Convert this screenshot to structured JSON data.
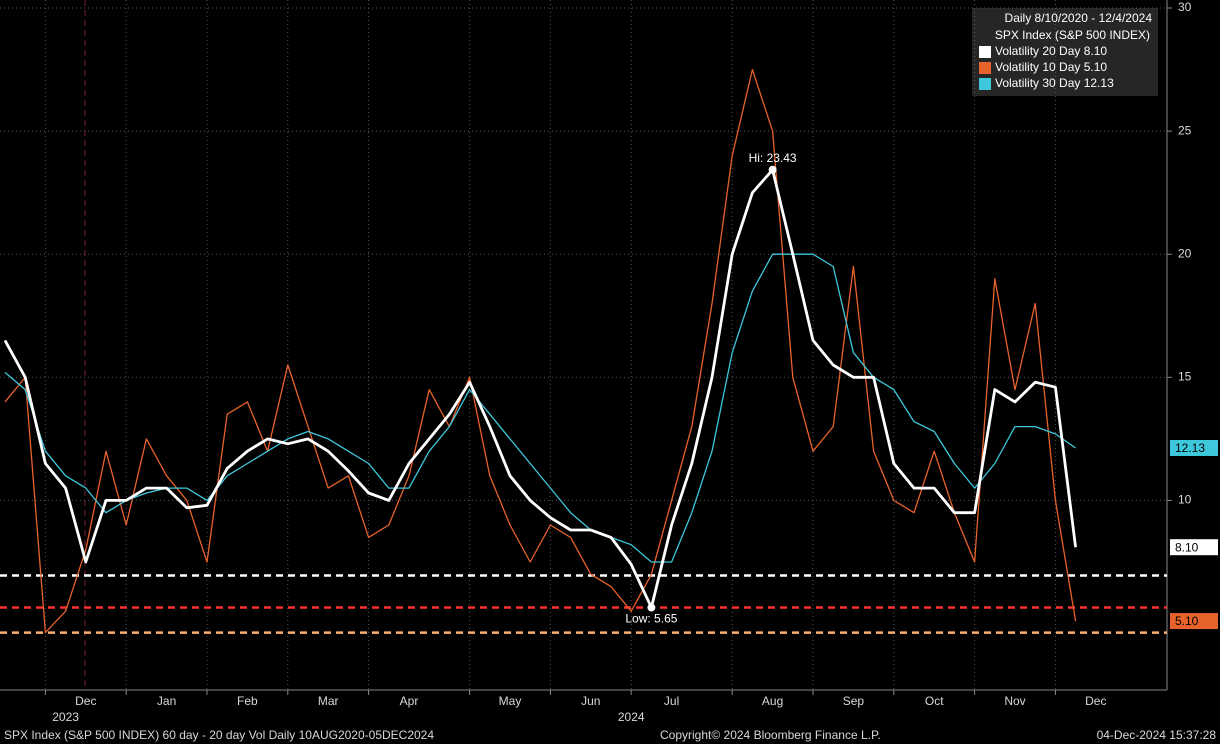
{
  "chart_data": {
    "type": "line",
    "legend_title": "Daily 8/10/2020 - 12/4/2024",
    "legend_subtitle": "SPX Index (S&P 500 INDEX)",
    "footer_left": "SPX Index (S&P 500 INDEX) 60 day - 20 day Vol  Daily 10AUG2020-05DEC2024",
    "footer_center": "Copyright© 2024 Bloomberg Finance L.P.",
    "footer_right": "04-Dec-2024 15:37:28",
    "categories": [
      null,
      null,
      null,
      null,
      "Dec",
      null,
      null,
      null,
      "Jan",
      null,
      null,
      null,
      "Feb",
      null,
      null,
      null,
      "Mar",
      null,
      null,
      null,
      "Apr",
      null,
      null,
      null,
      null,
      "May",
      null,
      null,
      null,
      "Jun",
      null,
      null,
      null,
      "Jul",
      null,
      null,
      null,
      null,
      "Aug",
      null,
      null,
      null,
      "Sep",
      null,
      null,
      null,
      "Oct",
      null,
      null,
      null,
      "Nov",
      null,
      null,
      null,
      "Dec",
      null,
      null,
      null
    ],
    "year_labels": [
      null,
      null,
      null,
      "2023",
      null,
      null,
      null,
      null,
      null,
      null,
      null,
      null,
      null,
      null,
      null,
      null,
      null,
      null,
      null,
      null,
      null,
      null,
      null,
      null,
      null,
      null,
      null,
      null,
      null,
      null,
      null,
      "2024",
      null,
      null,
      null,
      null,
      null,
      null,
      null,
      null,
      null,
      null,
      null,
      null,
      null,
      null,
      null,
      null,
      null,
      null,
      null,
      null,
      null,
      null,
      null,
      null,
      null,
      null
    ],
    "series": [
      {
        "name": "Volatility 20 Day 8.10",
        "color": "#ffffff",
        "end_label": "8.10",
        "end_value": 8.1,
        "values": [
          16.5,
          15,
          11.5,
          10.5,
          7.5,
          10,
          10,
          10.5,
          10.5,
          9.7,
          9.8,
          11.3,
          12,
          12.5,
          12.3,
          12.5,
          12,
          11.2,
          10.3,
          10,
          11.5,
          12.5,
          13.5,
          14.8,
          13,
          11,
          10,
          9.3,
          8.8,
          8.8,
          8.5,
          7.4,
          5.65,
          9,
          11.5,
          15,
          20,
          22.5,
          23.43,
          20,
          16.5,
          15.5,
          15,
          15,
          11.5,
          10.5,
          10.5,
          9.5,
          9.5,
          14.5,
          14,
          14.8,
          14.6,
          8.1,
          null,
          null,
          null,
          null
        ]
      },
      {
        "name": "Volatility 10 Day 5.10",
        "color": "#e8622c",
        "end_label": "5.10",
        "end_value": 5.1,
        "values": [
          14,
          15,
          4.63,
          5.5,
          8,
          12,
          9,
          12.5,
          11,
          10,
          7.5,
          13.5,
          14,
          12,
          15.5,
          13,
          10.5,
          11,
          8.5,
          9,
          11,
          14.5,
          13,
          15,
          11,
          9,
          7.5,
          9,
          8.5,
          7,
          6.5,
          5.5,
          7,
          10,
          13,
          18,
          24,
          27.5,
          25,
          15,
          12,
          13,
          19.5,
          12,
          10,
          9.5,
          12,
          9.5,
          7.5,
          19,
          14.5,
          18,
          10,
          5.1,
          null,
          null,
          null,
          null
        ]
      },
      {
        "name": "Volatility 30 Day 12.13",
        "color": "#3ec8dc",
        "end_label": "12.13",
        "end_value": 12.13,
        "values": [
          15.2,
          14.5,
          12,
          11,
          10.5,
          9.5,
          10,
          10.3,
          10.5,
          10.5,
          10,
          11,
          11.5,
          12,
          12.5,
          12.8,
          12.5,
          12,
          11.5,
          10.5,
          10.5,
          12,
          13,
          14.5,
          13.5,
          12.5,
          11.5,
          10.5,
          9.5,
          8.8,
          8.5,
          8.2,
          7.5,
          7.5,
          9.5,
          12,
          16,
          18.5,
          20,
          20,
          20,
          19.5,
          16,
          15,
          14.5,
          13.2,
          12.8,
          11.5,
          10.5,
          11.5,
          13,
          13,
          12.7,
          12.13,
          null,
          null,
          null,
          null
        ]
      }
    ],
    "annotations": [
      {
        "label": "Hi: 23.43",
        "value": 23.43
      },
      {
        "label": "Low: 5.65",
        "value": 5.65
      }
    ],
    "ref_lines": [
      {
        "value": 6.95,
        "color": "#ffffff"
      },
      {
        "value": 5.65,
        "color": "#ff3030"
      },
      {
        "value": 4.63,
        "color": "#ffb070"
      }
    ],
    "ylim": [
      2.3,
      30
    ],
    "yticks": [
      10,
      15,
      20,
      25,
      30
    ],
    "grid": true
  }
}
